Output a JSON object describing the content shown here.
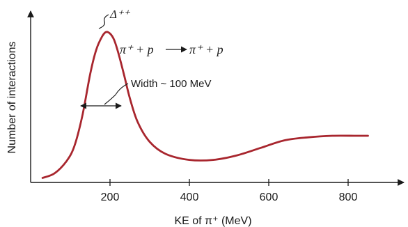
{
  "chart_data": {
    "type": "line",
    "xlabel": "KE of π⁺ (MeV)",
    "ylabel": "Number of interactions",
    "x_ticks": [
      200,
      400,
      600,
      800
    ],
    "xlim": [
      0,
      1000
    ],
    "grid": false,
    "series": [
      {
        "color": "#a8262e",
        "x": [
          30,
          60,
          90,
          110,
          130,
          150,
          165,
          180,
          190,
          200,
          210,
          220,
          235,
          250,
          270,
          300,
          340,
          400,
          460,
          520,
          580,
          640,
          700,
          760,
          820,
          850
        ],
        "y": [
          0.03,
          0.06,
          0.14,
          0.24,
          0.44,
          0.72,
          0.88,
          0.97,
          1.0,
          0.99,
          0.95,
          0.87,
          0.72,
          0.56,
          0.4,
          0.27,
          0.19,
          0.15,
          0.15,
          0.18,
          0.23,
          0.28,
          0.3,
          0.31,
          0.31,
          0.31
        ]
      }
    ],
    "annotations": {
      "peak_label": "Δ⁺⁺",
      "reaction_left": "π⁺ + p",
      "reaction_right": "π⁺ + p",
      "width_label": "Width ~ 100 MeV"
    }
  }
}
